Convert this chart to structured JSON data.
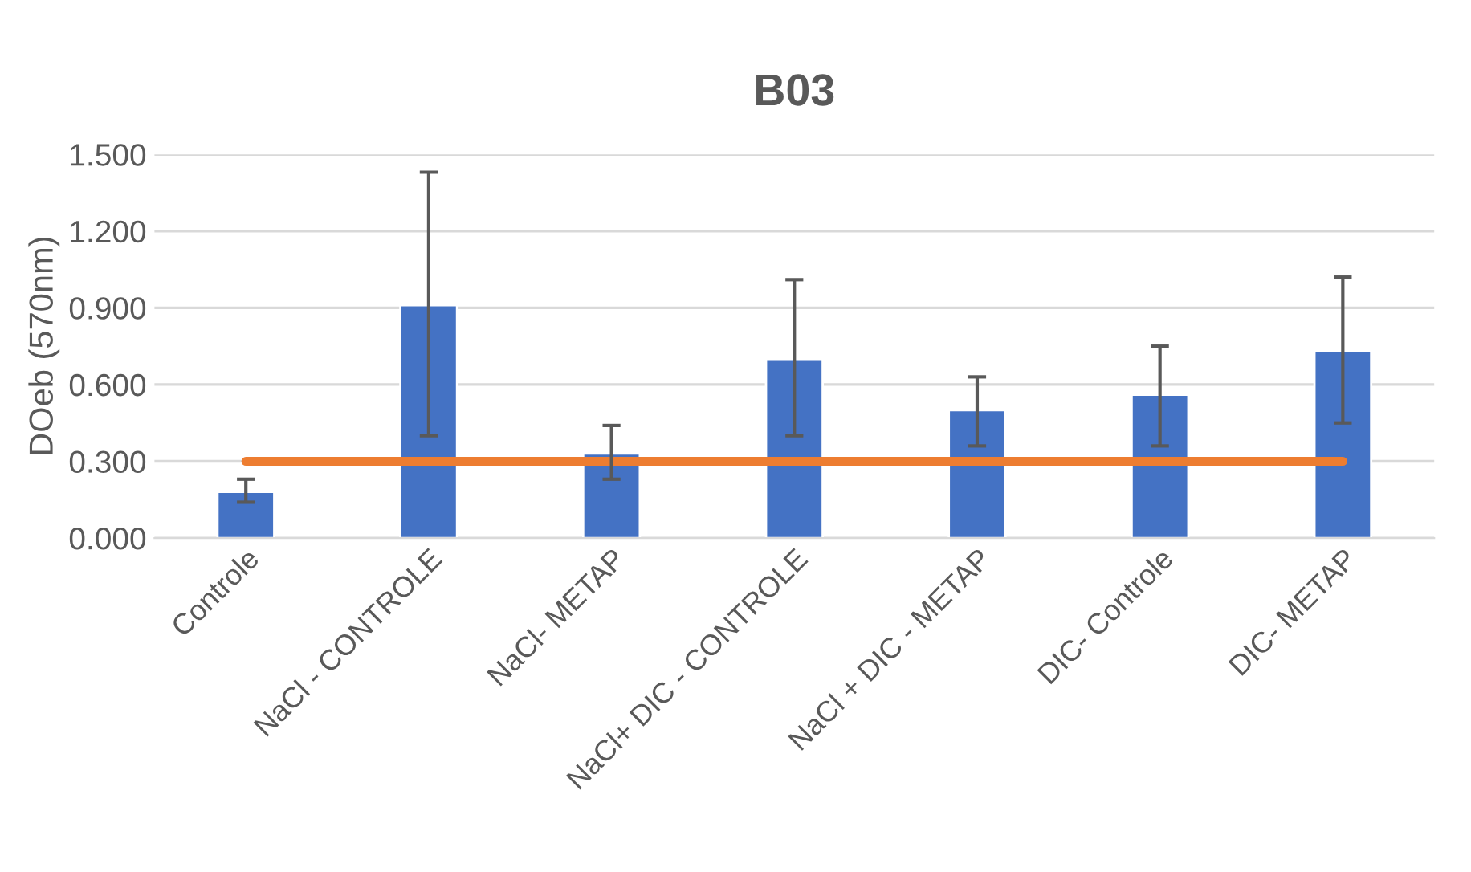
{
  "chart_data": {
    "type": "bar",
    "title": "B03",
    "ylabel": "DOeb (570nm)",
    "categories": [
      "Controle",
      "NaCl - CONTROLE",
      "NaCl- METAP",
      "NaCl+ DIC - CONTROLE",
      "NaCl + DIC - METAP",
      "DIC- Controle",
      "DIC- METAP"
    ],
    "series": [
      {
        "color": "#4472c4",
        "values": [
          0.18,
          0.91,
          0.33,
          0.7,
          0.5,
          0.56,
          0.73
        ],
        "errors": [
          [
            0.14,
            0.23
          ],
          [
            0.4,
            1.43
          ],
          [
            0.23,
            0.44
          ],
          [
            0.4,
            1.01
          ],
          [
            0.36,
            0.63
          ],
          [
            0.36,
            0.75
          ],
          [
            0.45,
            1.02
          ]
        ]
      },
      {
        "type": "line",
        "color": "#ed7d31",
        "values": [
          0.3,
          0.3,
          0.3,
          0.3,
          0.3,
          0.3,
          0.3
        ]
      }
    ],
    "ylim": [
      0,
      1.5
    ],
    "yticks": [
      {
        "value": 0,
        "label": "0.000"
      },
      {
        "value": 0.3,
        "label": "0.300"
      },
      {
        "value": 0.6,
        "label": "0.600"
      },
      {
        "value": 0.9,
        "label": "0.900"
      },
      {
        "value": 1.2,
        "label": "1.200"
      },
      {
        "value": 1.5,
        "label": "1.500"
      }
    ],
    "grid": "y",
    "legend": false
  }
}
